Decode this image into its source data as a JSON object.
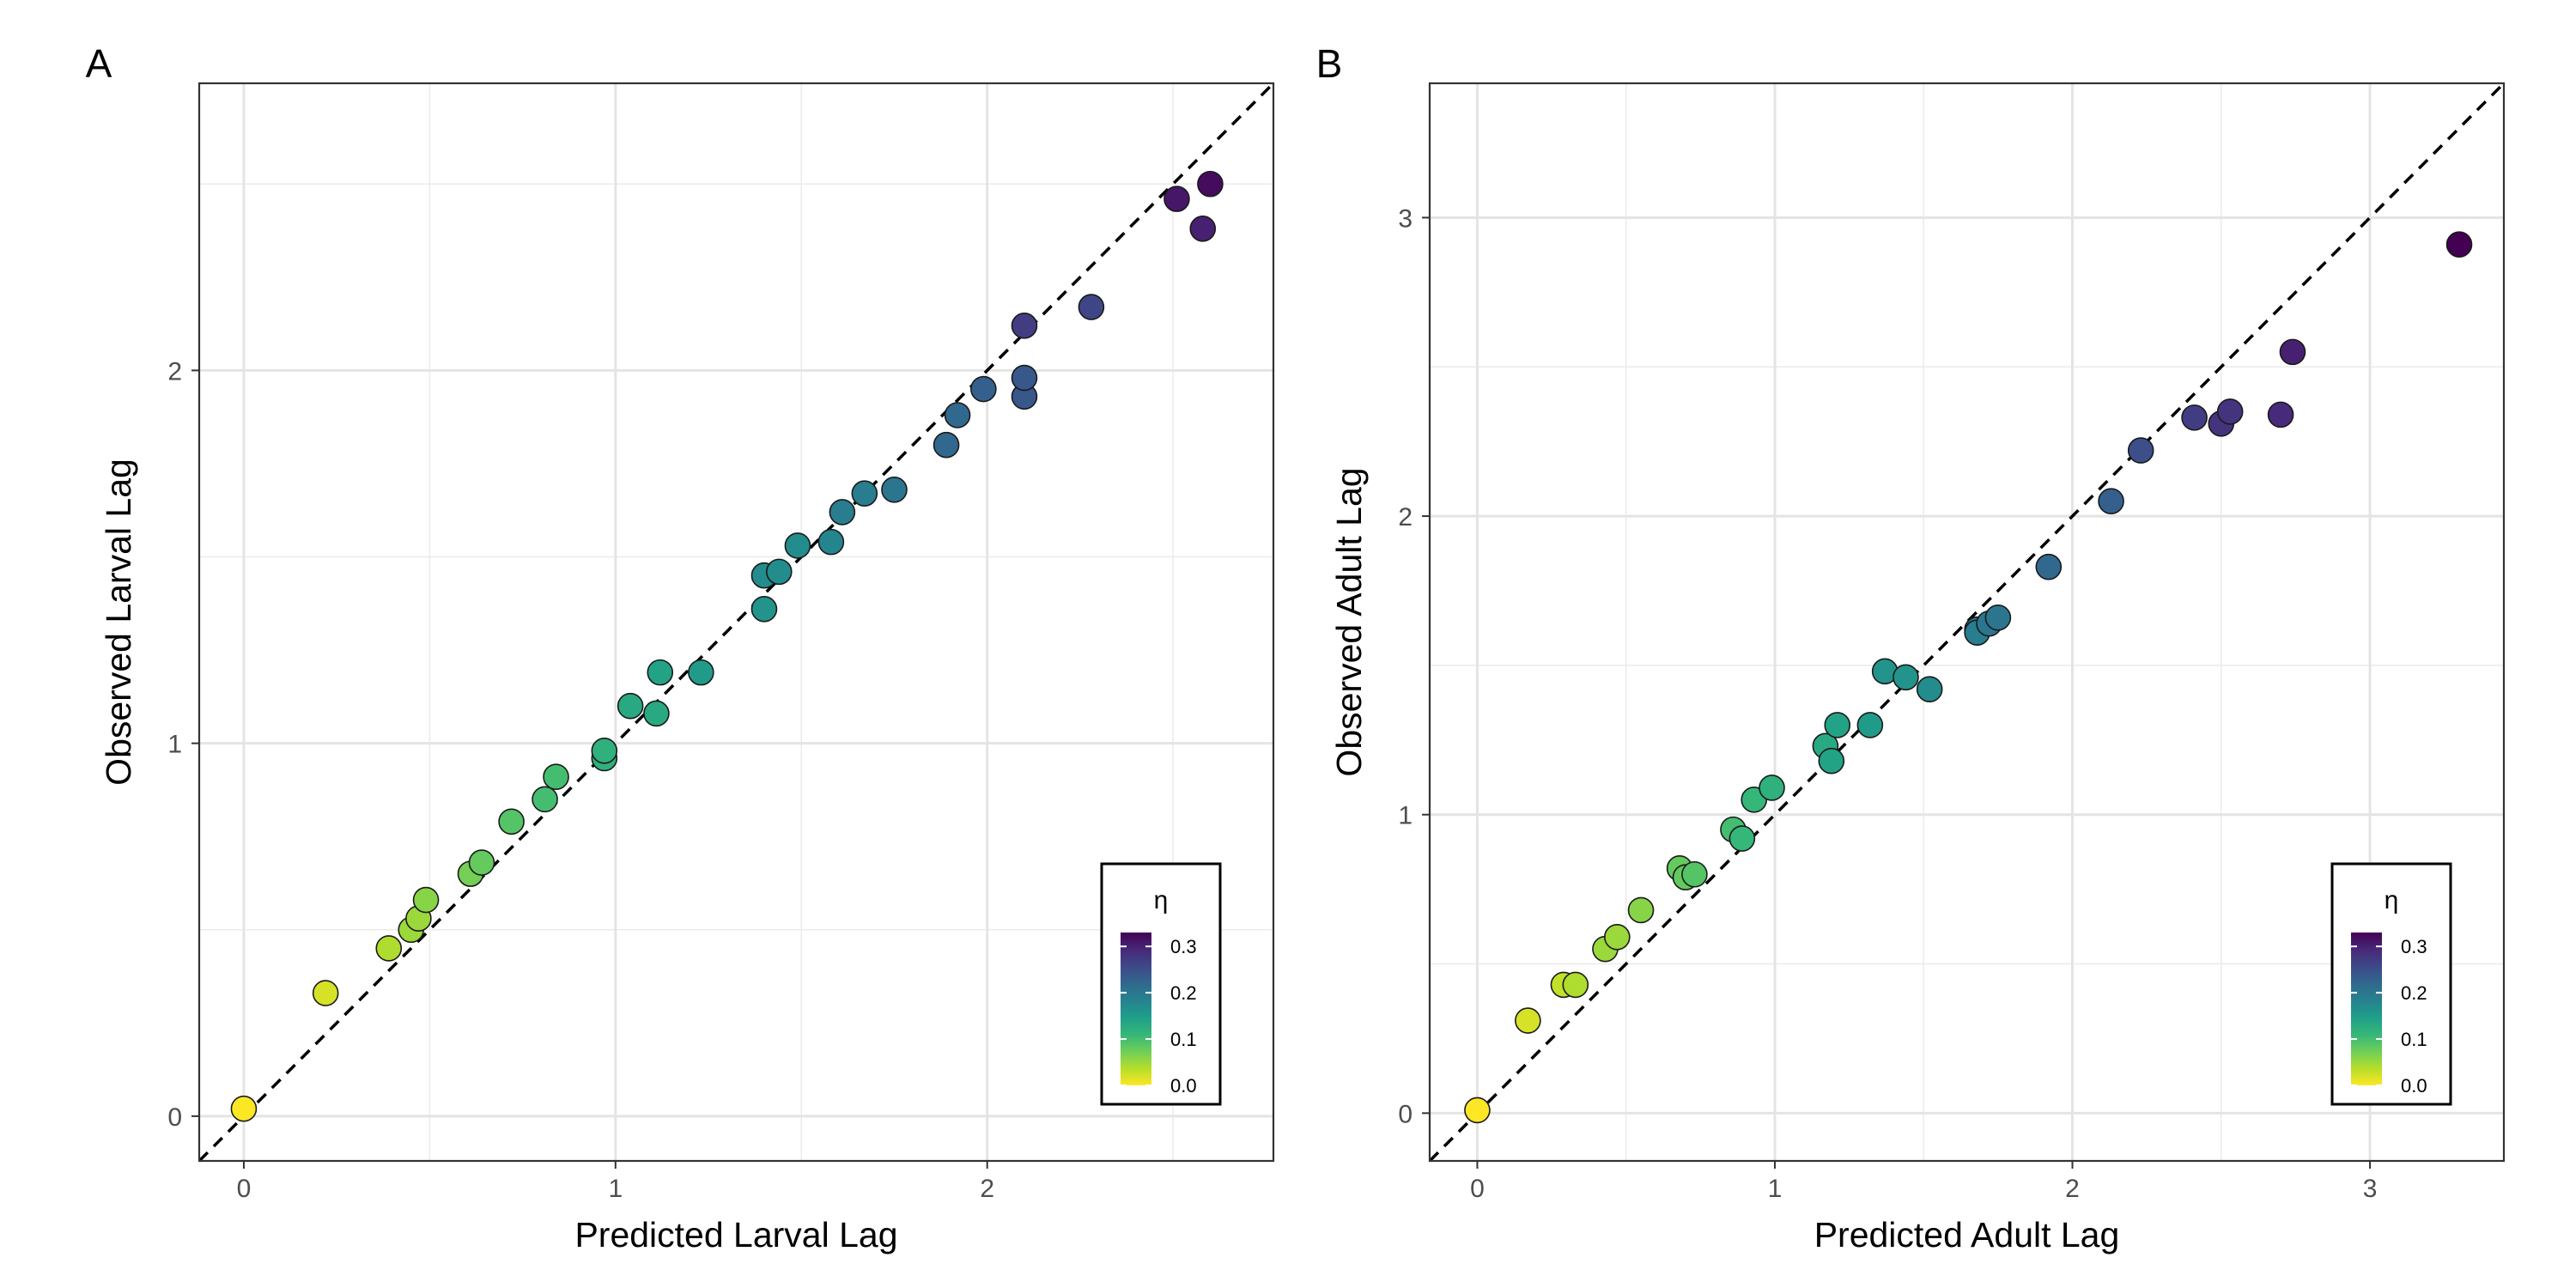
{
  "colormap": [
    "#fde725",
    "#b5de2b",
    "#6ece58",
    "#35b779",
    "#1f9e89",
    "#26828e",
    "#31688e",
    "#3e4989",
    "#482878",
    "#440154"
  ],
  "chart_data": [
    {
      "type": "scatter",
      "panel_label": "A",
      "xlabel": "Predicted Larval Lag",
      "ylabel": "Observed Larval Lag",
      "xlim": [
        -0.12,
        2.77
      ],
      "ylim": [
        -0.12,
        2.77
      ],
      "xticks": [
        0,
        1,
        2
      ],
      "yticks": [
        0,
        1,
        2
      ],
      "tick_labels": [
        "0",
        "1",
        "2"
      ],
      "reference_line": "y = x",
      "grid": true,
      "legend": {
        "title": "η",
        "placement": "bottom-right",
        "min": 0,
        "max": 0.33,
        "ticks": [
          0.0,
          0.1,
          0.2,
          0.3
        ],
        "tick_labels": [
          "0.0",
          "0.1",
          "0.2",
          "0.3"
        ]
      },
      "points": [
        {
          "x": 0.0,
          "y": 0.02,
          "eta": 0.0
        },
        {
          "x": 0.22,
          "y": 0.33,
          "eta": 0.02
        },
        {
          "x": 0.39,
          "y": 0.45,
          "eta": 0.04
        },
        {
          "x": 0.45,
          "y": 0.5,
          "eta": 0.05
        },
        {
          "x": 0.47,
          "y": 0.53,
          "eta": 0.05
        },
        {
          "x": 0.49,
          "y": 0.58,
          "eta": 0.06
        },
        {
          "x": 0.61,
          "y": 0.65,
          "eta": 0.07
        },
        {
          "x": 0.64,
          "y": 0.68,
          "eta": 0.08
        },
        {
          "x": 0.72,
          "y": 0.79,
          "eta": 0.09
        },
        {
          "x": 0.81,
          "y": 0.85,
          "eta": 0.1
        },
        {
          "x": 0.84,
          "y": 0.91,
          "eta": 0.1
        },
        {
          "x": 0.97,
          "y": 0.96,
          "eta": 0.12
        },
        {
          "x": 0.97,
          "y": 0.98,
          "eta": 0.12
        },
        {
          "x": 1.04,
          "y": 1.1,
          "eta": 0.13
        },
        {
          "x": 1.11,
          "y": 1.08,
          "eta": 0.13
        },
        {
          "x": 1.12,
          "y": 1.19,
          "eta": 0.14
        },
        {
          "x": 1.23,
          "y": 1.19,
          "eta": 0.15
        },
        {
          "x": 1.4,
          "y": 1.36,
          "eta": 0.16
        },
        {
          "x": 1.4,
          "y": 1.45,
          "eta": 0.17
        },
        {
          "x": 1.44,
          "y": 1.46,
          "eta": 0.17
        },
        {
          "x": 1.49,
          "y": 1.53,
          "eta": 0.17
        },
        {
          "x": 1.58,
          "y": 1.54,
          "eta": 0.18
        },
        {
          "x": 1.61,
          "y": 1.62,
          "eta": 0.19
        },
        {
          "x": 1.67,
          "y": 1.67,
          "eta": 0.19
        },
        {
          "x": 1.75,
          "y": 1.68,
          "eta": 0.2
        },
        {
          "x": 1.89,
          "y": 1.8,
          "eta": 0.22
        },
        {
          "x": 1.92,
          "y": 1.88,
          "eta": 0.22
        },
        {
          "x": 1.99,
          "y": 1.95,
          "eta": 0.23
        },
        {
          "x": 2.1,
          "y": 1.93,
          "eta": 0.24
        },
        {
          "x": 2.1,
          "y": 1.98,
          "eta": 0.24
        },
        {
          "x": 2.1,
          "y": 2.12,
          "eta": 0.27
        },
        {
          "x": 2.28,
          "y": 2.17,
          "eta": 0.26
        },
        {
          "x": 2.51,
          "y": 2.46,
          "eta": 0.31
        },
        {
          "x": 2.58,
          "y": 2.38,
          "eta": 0.3
        },
        {
          "x": 2.6,
          "y": 2.5,
          "eta": 0.32
        }
      ]
    },
    {
      "type": "scatter",
      "panel_label": "B",
      "xlabel": "Predicted Adult Lag",
      "ylabel": "Observed Adult Lag",
      "xlim": [
        -0.16,
        3.45
      ],
      "ylim": [
        -0.16,
        3.45
      ],
      "xticks": [
        0,
        1,
        2,
        3
      ],
      "yticks": [
        0,
        1,
        2,
        3
      ],
      "tick_labels": [
        "0",
        "1",
        "2",
        "3"
      ],
      "reference_line": "y = x",
      "grid": true,
      "legend": {
        "title": "η",
        "placement": "bottom-right",
        "min": 0,
        "max": 0.33,
        "ticks": [
          0.0,
          0.1,
          0.2,
          0.3
        ],
        "tick_labels": [
          "0.0",
          "0.1",
          "0.2",
          "0.3"
        ]
      },
      "points": [
        {
          "x": 0.0,
          "y": 0.01,
          "eta": 0.0
        },
        {
          "x": 0.17,
          "y": 0.31,
          "eta": 0.02
        },
        {
          "x": 0.29,
          "y": 0.43,
          "eta": 0.03
        },
        {
          "x": 0.33,
          "y": 0.43,
          "eta": 0.04
        },
        {
          "x": 0.43,
          "y": 0.55,
          "eta": 0.05
        },
        {
          "x": 0.47,
          "y": 0.59,
          "eta": 0.05
        },
        {
          "x": 0.55,
          "y": 0.68,
          "eta": 0.06
        },
        {
          "x": 0.68,
          "y": 0.82,
          "eta": 0.08
        },
        {
          "x": 0.7,
          "y": 0.79,
          "eta": 0.08
        },
        {
          "x": 0.73,
          "y": 0.8,
          "eta": 0.09
        },
        {
          "x": 0.86,
          "y": 0.95,
          "eta": 0.1
        },
        {
          "x": 0.89,
          "y": 0.92,
          "eta": 0.11
        },
        {
          "x": 0.93,
          "y": 1.05,
          "eta": 0.11
        },
        {
          "x": 0.99,
          "y": 1.09,
          "eta": 0.12
        },
        {
          "x": 1.17,
          "y": 1.23,
          "eta": 0.13
        },
        {
          "x": 1.19,
          "y": 1.18,
          "eta": 0.14
        },
        {
          "x": 1.21,
          "y": 1.3,
          "eta": 0.14
        },
        {
          "x": 1.32,
          "y": 1.3,
          "eta": 0.15
        },
        {
          "x": 1.37,
          "y": 1.48,
          "eta": 0.16
        },
        {
          "x": 1.44,
          "y": 1.46,
          "eta": 0.16
        },
        {
          "x": 1.52,
          "y": 1.42,
          "eta": 0.17
        },
        {
          "x": 1.68,
          "y": 1.62,
          "eta": 0.19
        },
        {
          "x": 1.68,
          "y": 1.61,
          "eta": 0.19
        },
        {
          "x": 1.72,
          "y": 1.64,
          "eta": 0.2
        },
        {
          "x": 1.75,
          "y": 1.66,
          "eta": 0.2
        },
        {
          "x": 1.92,
          "y": 1.83,
          "eta": 0.22
        },
        {
          "x": 2.13,
          "y": 2.05,
          "eta": 0.23
        },
        {
          "x": 2.23,
          "y": 2.22,
          "eta": 0.25
        },
        {
          "x": 2.41,
          "y": 2.33,
          "eta": 0.27
        },
        {
          "x": 2.5,
          "y": 2.31,
          "eta": 0.28
        },
        {
          "x": 2.53,
          "y": 2.35,
          "eta": 0.28
        },
        {
          "x": 2.7,
          "y": 2.34,
          "eta": 0.29
        },
        {
          "x": 2.74,
          "y": 2.55,
          "eta": 0.3
        },
        {
          "x": 3.3,
          "y": 2.91,
          "eta": 0.33
        }
      ]
    }
  ]
}
